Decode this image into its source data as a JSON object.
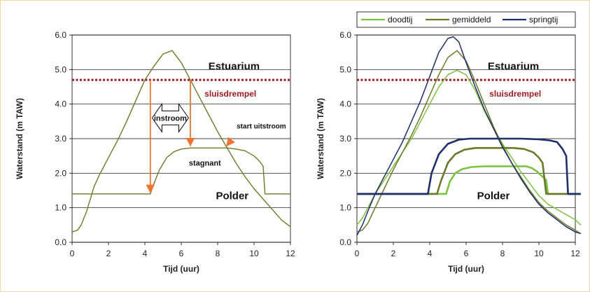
{
  "colors": {
    "olive": "#6b7a2a",
    "light_green": "#7cc242",
    "navy": "#1f2e6b",
    "threshold": "#9b1c22",
    "arrow": "#ee7434"
  },
  "chart_data": [
    {
      "type": "line",
      "xlabel": "Tijd (uur)",
      "ylabel": "Waterstand (m TAW)",
      "xlim": [
        0,
        12
      ],
      "ylim": [
        0,
        6
      ],
      "xticks": [
        "0",
        "2",
        "4",
        "6",
        "8",
        "10",
        "12"
      ],
      "yticks": [
        "0.0",
        "1.0",
        "2.0",
        "3.0",
        "4.0",
        "5.0",
        "6.0"
      ],
      "grid": "horizontal",
      "threshold": {
        "label": "sluisdrempel",
        "y": 4.7
      },
      "annotations": {
        "estuarium": "Estuarium",
        "polder": "Polder",
        "instroom": "instroom",
        "start_uitstroom": "start uitstroom",
        "stagnant": "stagnant"
      },
      "arrows": [
        {
          "x": 4.3,
          "from": 4.7,
          "to": 1.4
        },
        {
          "x": 6.5,
          "from": 4.7,
          "to": 2.75
        },
        {
          "x": 8.5,
          "from": 2.95,
          "to": 2.75
        }
      ],
      "series": [
        {
          "color": "#6b7a2a",
          "x": [
            0,
            0.3,
            0.5,
            0.8,
            1.0,
            1.2,
            1.5,
            2.0,
            2.5,
            3.0,
            3.5,
            4.0,
            4.5,
            5.0,
            5.5,
            6.0,
            6.5,
            7.0,
            7.5,
            8.0,
            8.5,
            9.0,
            9.5,
            10.0,
            10.5,
            11.0,
            11.5,
            12.0
          ],
          "y": [
            0.3,
            0.35,
            0.5,
            0.9,
            1.25,
            1.6,
            1.95,
            2.45,
            2.95,
            3.5,
            4.1,
            4.7,
            5.1,
            5.45,
            5.55,
            5.2,
            4.7,
            4.2,
            3.7,
            3.2,
            2.75,
            2.3,
            1.9,
            1.55,
            1.25,
            0.95,
            0.65,
            0.45
          ]
        },
        {
          "color": "#6b7a2a",
          "x": [
            0,
            4.3,
            4.5,
            4.8,
            5.2,
            5.6,
            6.0,
            6.5,
            8.5,
            9.0,
            9.5,
            10.0,
            10.3,
            10.5,
            10.6,
            12.0
          ],
          "y": [
            1.4,
            1.4,
            1.7,
            2.1,
            2.45,
            2.62,
            2.7,
            2.73,
            2.73,
            2.7,
            2.65,
            2.5,
            2.35,
            2.2,
            1.4,
            1.4
          ]
        }
      ]
    },
    {
      "type": "line",
      "xlabel": "Tijd (uur)",
      "ylabel": "Waterstand (m TAW)",
      "xlim": [
        0,
        12
      ],
      "ylim": [
        0,
        6
      ],
      "xticks": [
        "0",
        "2",
        "4",
        "6",
        "8",
        "10",
        "12"
      ],
      "yticks": [
        "0.0",
        "1.0",
        "2.0",
        "3.0",
        "4.0",
        "5.0",
        "6.0"
      ],
      "grid": "horizontal",
      "legend": "top",
      "threshold": {
        "label": "sluisdrempel",
        "y": 4.7
      },
      "annotations": {
        "estuarium": "Estuarium",
        "polder": "Polder"
      },
      "series": [
        {
          "name": "doodtij",
          "color": "#7cc242",
          "x": [
            0,
            0.3,
            0.6,
            1.0,
            1.5,
            2.0,
            2.5,
            3.0,
            3.5,
            4.0,
            4.5,
            5.0,
            5.5,
            6.0,
            6.5,
            7.0,
            7.5,
            8.0,
            8.5,
            9.0,
            9.5,
            10.0,
            10.5,
            11.0,
            11.5,
            12.0,
            12.3
          ],
          "y": [
            0.5,
            0.7,
            1.0,
            1.4,
            1.8,
            2.2,
            2.6,
            3.0,
            3.5,
            4.0,
            4.5,
            4.85,
            4.98,
            4.85,
            4.4,
            3.8,
            3.3,
            2.85,
            2.45,
            2.05,
            1.7,
            1.35,
            1.1,
            0.95,
            0.8,
            0.65,
            0.5
          ],
          "stage": {
            "x": [
              0,
              4.9,
              5.1,
              5.4,
              5.8,
              6.3,
              7.0,
              9.3,
              9.6,
              9.9,
              10.2,
              10.4,
              10.5,
              12.3
            ],
            "y": [
              1.4,
              1.4,
              1.75,
              2.0,
              2.12,
              2.18,
              2.2,
              2.2,
              2.15,
              2.05,
              1.9,
              1.8,
              1.4,
              1.4
            ]
          }
        },
        {
          "name": "gemiddeld",
          "color": "#6b7a2a",
          "x": [
            0,
            0.3,
            0.6,
            1.0,
            1.5,
            2.0,
            2.5,
            3.0,
            3.5,
            4.0,
            4.5,
            5.0,
            5.5,
            6.0,
            6.5,
            7.0,
            7.5,
            8.0,
            8.5,
            9.0,
            9.5,
            10.0,
            10.5,
            11.0,
            11.5,
            12.0,
            12.3
          ],
          "y": [
            0.3,
            0.35,
            0.55,
            1.0,
            1.55,
            2.1,
            2.6,
            3.1,
            3.65,
            4.25,
            4.85,
            5.35,
            5.55,
            5.25,
            4.65,
            4.0,
            3.35,
            2.8,
            2.3,
            1.9,
            1.5,
            1.15,
            0.9,
            0.7,
            0.5,
            0.35,
            0.25
          ],
          "stage": {
            "x": [
              0,
              4.4,
              4.6,
              5.0,
              5.4,
              5.9,
              6.5,
              8.6,
              9.2,
              9.7,
              10.0,
              10.2,
              10.4,
              12.3
            ],
            "y": [
              1.4,
              1.4,
              1.75,
              2.3,
              2.55,
              2.68,
              2.73,
              2.73,
              2.7,
              2.6,
              2.45,
              2.3,
              1.4,
              1.4
            ]
          }
        },
        {
          "name": "springtij",
          "color": "#1f2e6b",
          "x": [
            0,
            0.3,
            0.6,
            1.0,
            1.5,
            2.0,
            2.5,
            3.0,
            3.5,
            4.0,
            4.5,
            5.0,
            5.3,
            5.6,
            6.0,
            6.5,
            7.0,
            7.5,
            8.0,
            8.5,
            9.0,
            9.5,
            10.0,
            10.5,
            11.0,
            11.5,
            12.0,
            12.3
          ],
          "y": [
            0.2,
            0.5,
            0.9,
            1.4,
            1.9,
            2.4,
            2.9,
            3.5,
            4.1,
            4.8,
            5.5,
            5.9,
            5.95,
            5.8,
            5.2,
            4.5,
            3.85,
            3.3,
            2.75,
            2.3,
            1.85,
            1.45,
            1.1,
            0.85,
            0.65,
            0.45,
            0.3,
            0.25
          ],
          "stage": {
            "x": [
              0,
              3.9,
              4.1,
              4.5,
              5.0,
              5.6,
              6.2,
              9.0,
              10.0,
              10.6,
              11.0,
              11.3,
              11.5,
              11.6,
              12.3
            ],
            "y": [
              1.4,
              1.4,
              2.0,
              2.55,
              2.85,
              2.97,
              3.0,
              3.0,
              2.98,
              2.95,
              2.9,
              2.7,
              2.5,
              1.4,
              1.4
            ]
          }
        }
      ]
    }
  ]
}
